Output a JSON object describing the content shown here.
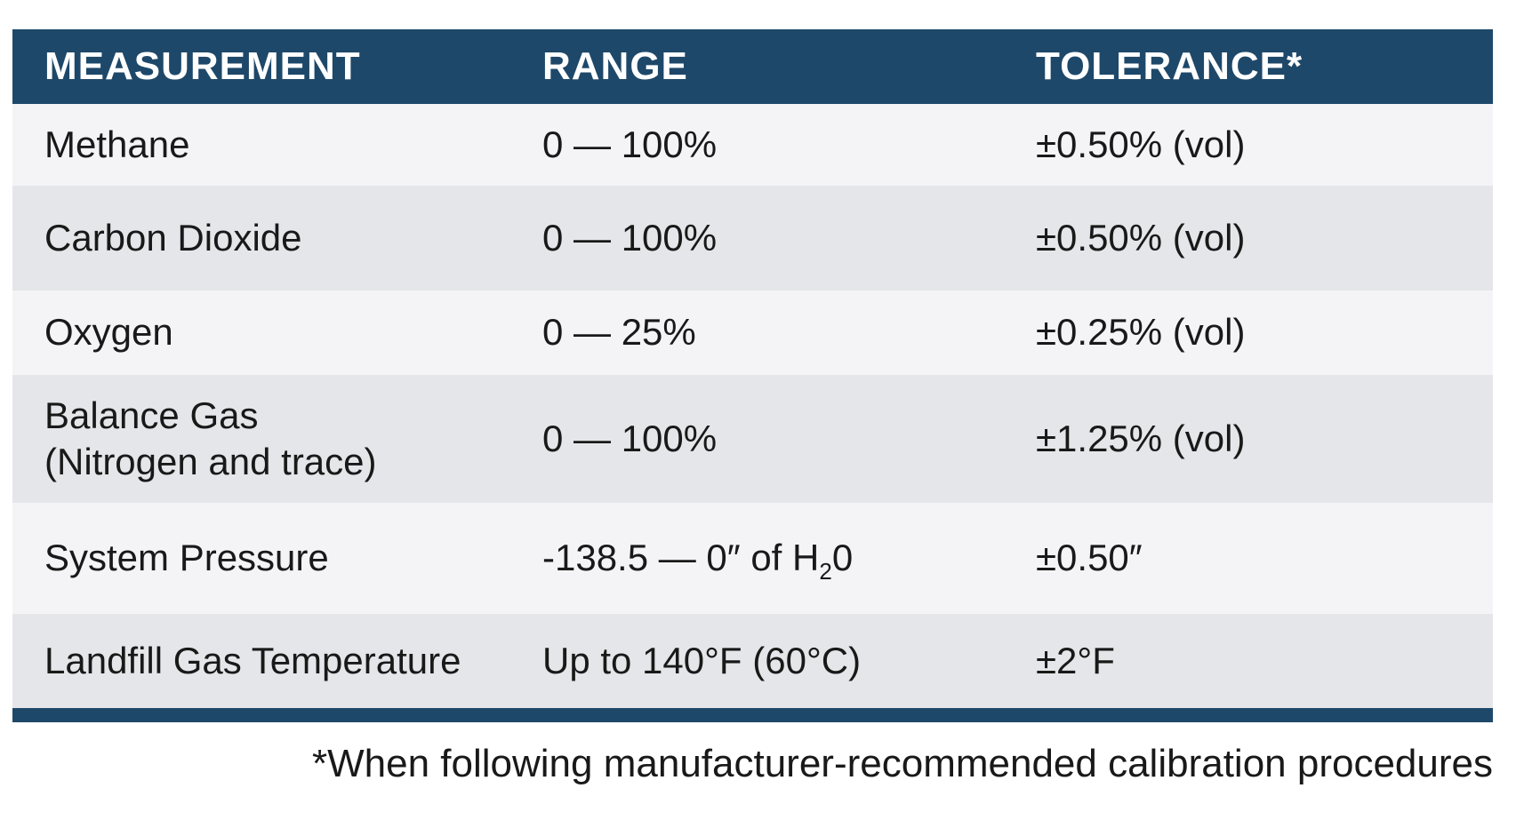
{
  "colors": {
    "header_bg": "#1E4869",
    "bottom_bar": "#1E4869",
    "row_light": "#F4F4F6",
    "row_dark": "#E5E6E9",
    "header_text": "#FFFFFF",
    "body_text": "#191919"
  },
  "table": {
    "columns": [
      {
        "label": "MEASUREMENT"
      },
      {
        "label": "RANGE"
      },
      {
        "label": "TOLERANCE*"
      }
    ],
    "rows": [
      {
        "measurement": "Methane",
        "measurement_line2": "",
        "range": "0 — 100%",
        "range_sub": "",
        "range_end": "",
        "tolerance": "±0.50% (vol)"
      },
      {
        "measurement": "Carbon Dioxide",
        "measurement_line2": "",
        "range": "0 — 100%",
        "range_sub": "",
        "range_end": "",
        "tolerance": "±0.50% (vol)"
      },
      {
        "measurement": "Oxygen",
        "measurement_line2": "",
        "range": "0 — 25%",
        "range_sub": "",
        "range_end": "",
        "tolerance": "±0.25% (vol)"
      },
      {
        "measurement": "Balance Gas",
        "measurement_line2": "(Nitrogen and trace)",
        "range": "0 — 100%",
        "range_sub": "",
        "range_end": "",
        "tolerance": "±1.25% (vol)"
      },
      {
        "measurement": "System Pressure",
        "measurement_line2": "",
        "range": "-138.5 — 0″ of H",
        "range_sub": "2",
        "range_end": "0",
        "tolerance": "±0.50″"
      },
      {
        "measurement": "Landfill Gas Temperature",
        "measurement_line2": "",
        "range": "Up to 140°F (60°C)",
        "range_sub": "",
        "range_end": "",
        "tolerance": "±2°F"
      }
    ]
  },
  "footnote": "*When following manufacturer-recommended calibration procedures"
}
